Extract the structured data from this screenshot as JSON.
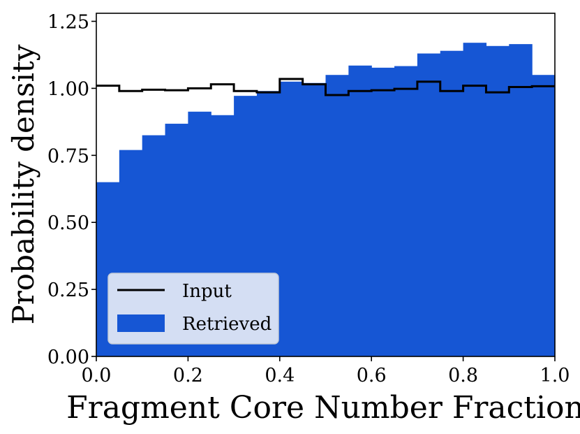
{
  "chart_data": {
    "type": "bar",
    "xlabel": "Fragment Core Number Fraction",
    "ylabel": "Probability density",
    "xlim": [
      0.0,
      1.0
    ],
    "ylim": [
      0.0,
      1.28
    ],
    "x_ticks": [
      "0.0",
      "0.2",
      "0.4",
      "0.6",
      "0.8",
      "1.0"
    ],
    "y_ticks": [
      "0.00",
      "0.25",
      "0.50",
      "0.75",
      "1.00",
      "1.25"
    ],
    "bin_edges": [
      0.0,
      0.05,
      0.1,
      0.15,
      0.2,
      0.25,
      0.3,
      0.35,
      0.4,
      0.45,
      0.5,
      0.55,
      0.6,
      0.65,
      0.7,
      0.75,
      0.8,
      0.85,
      0.9,
      0.95,
      1.0
    ],
    "series": [
      {
        "name": "Input",
        "style": "step",
        "color": "#000000",
        "values": [
          1.01,
          0.99,
          0.995,
          0.993,
          1.0,
          1.015,
          0.99,
          0.985,
          1.035,
          1.015,
          0.975,
          0.99,
          0.993,
          0.998,
          1.025,
          0.99,
          1.01,
          0.985,
          1.005,
          1.008
        ]
      },
      {
        "name": "Retrieved",
        "style": "filled-histogram",
        "color": "#1656d4",
        "values": [
          0.65,
          0.77,
          0.825,
          0.868,
          0.913,
          0.9,
          0.972,
          0.99,
          1.025,
          1.02,
          1.05,
          1.085,
          1.077,
          1.083,
          1.13,
          1.14,
          1.17,
          1.158,
          1.165,
          1.05
        ]
      }
    ],
    "legend_position": "bottom-left",
    "grid": false
  }
}
